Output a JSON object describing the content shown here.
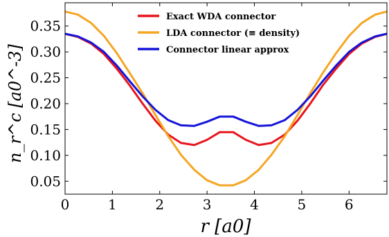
{
  "chart_data": {
    "type": "line",
    "xlabel": "r [a0]",
    "ylabel": "n_r^c [a0^-3]",
    "xlim": [
      0,
      6.8
    ],
    "ylim": [
      0.025,
      0.395
    ],
    "x_ticks": [
      0,
      1,
      2,
      3,
      4,
      5,
      6
    ],
    "x_tick_labels": [
      "0",
      "1",
      "2",
      "3",
      "4",
      "5",
      "6"
    ],
    "y_ticks": [
      0.05,
      0.1,
      0.15,
      0.2,
      0.25,
      0.3,
      0.35
    ],
    "y_tick_labels": [
      "0.05",
      "0.10",
      "0.15",
      "0.20",
      "0.25",
      "0.30",
      "0.35"
    ],
    "grid": false,
    "legend_position": "top-center",
    "series": [
      {
        "name": "Exact WDA connector",
        "color": "#e8141c",
        "x": [
          0,
          0.27,
          0.55,
          0.82,
          1.09,
          1.36,
          1.64,
          1.91,
          2.18,
          2.45,
          2.73,
          3.0,
          3.27,
          3.55,
          3.82,
          4.09,
          4.36,
          4.64,
          4.91,
          5.18,
          5.45,
          5.73,
          6.0,
          6.27,
          6.55,
          6.8
        ],
        "y": [
          0.335,
          0.329,
          0.316,
          0.296,
          0.268,
          0.236,
          0.2,
          0.167,
          0.14,
          0.124,
          0.12,
          0.13,
          0.145,
          0.145,
          0.13,
          0.12,
          0.124,
          0.14,
          0.167,
          0.2,
          0.236,
          0.268,
          0.296,
          0.316,
          0.329,
          0.335
        ]
      },
      {
        "name": "LDA connector (≡ density)",
        "color": "#f5a623",
        "x": [
          0,
          0.27,
          0.55,
          0.82,
          1.09,
          1.36,
          1.64,
          1.91,
          2.18,
          2.45,
          2.73,
          3.0,
          3.27,
          3.55,
          3.82,
          4.09,
          4.36,
          4.64,
          4.91,
          5.18,
          5.45,
          5.73,
          6.0,
          6.27,
          6.55,
          6.8
        ],
        "y": [
          0.378,
          0.372,
          0.356,
          0.331,
          0.298,
          0.26,
          0.22,
          0.178,
          0.137,
          0.101,
          0.072,
          0.052,
          0.042,
          0.042,
          0.052,
          0.072,
          0.101,
          0.137,
          0.178,
          0.22,
          0.26,
          0.298,
          0.331,
          0.356,
          0.372,
          0.378
        ]
      },
      {
        "name": "Connector linear approx",
        "color": "#1414d8",
        "x": [
          0,
          0.27,
          0.55,
          0.82,
          1.09,
          1.36,
          1.64,
          1.91,
          2.18,
          2.45,
          2.73,
          3.0,
          3.27,
          3.55,
          3.82,
          4.09,
          4.36,
          4.64,
          4.91,
          5.18,
          5.45,
          5.73,
          6.0,
          6.27,
          6.55,
          6.8
        ],
        "y": [
          0.335,
          0.33,
          0.318,
          0.3,
          0.274,
          0.244,
          0.214,
          0.188,
          0.168,
          0.158,
          0.157,
          0.165,
          0.175,
          0.175,
          0.165,
          0.157,
          0.158,
          0.168,
          0.188,
          0.214,
          0.244,
          0.274,
          0.3,
          0.318,
          0.33,
          0.335
        ]
      }
    ]
  }
}
